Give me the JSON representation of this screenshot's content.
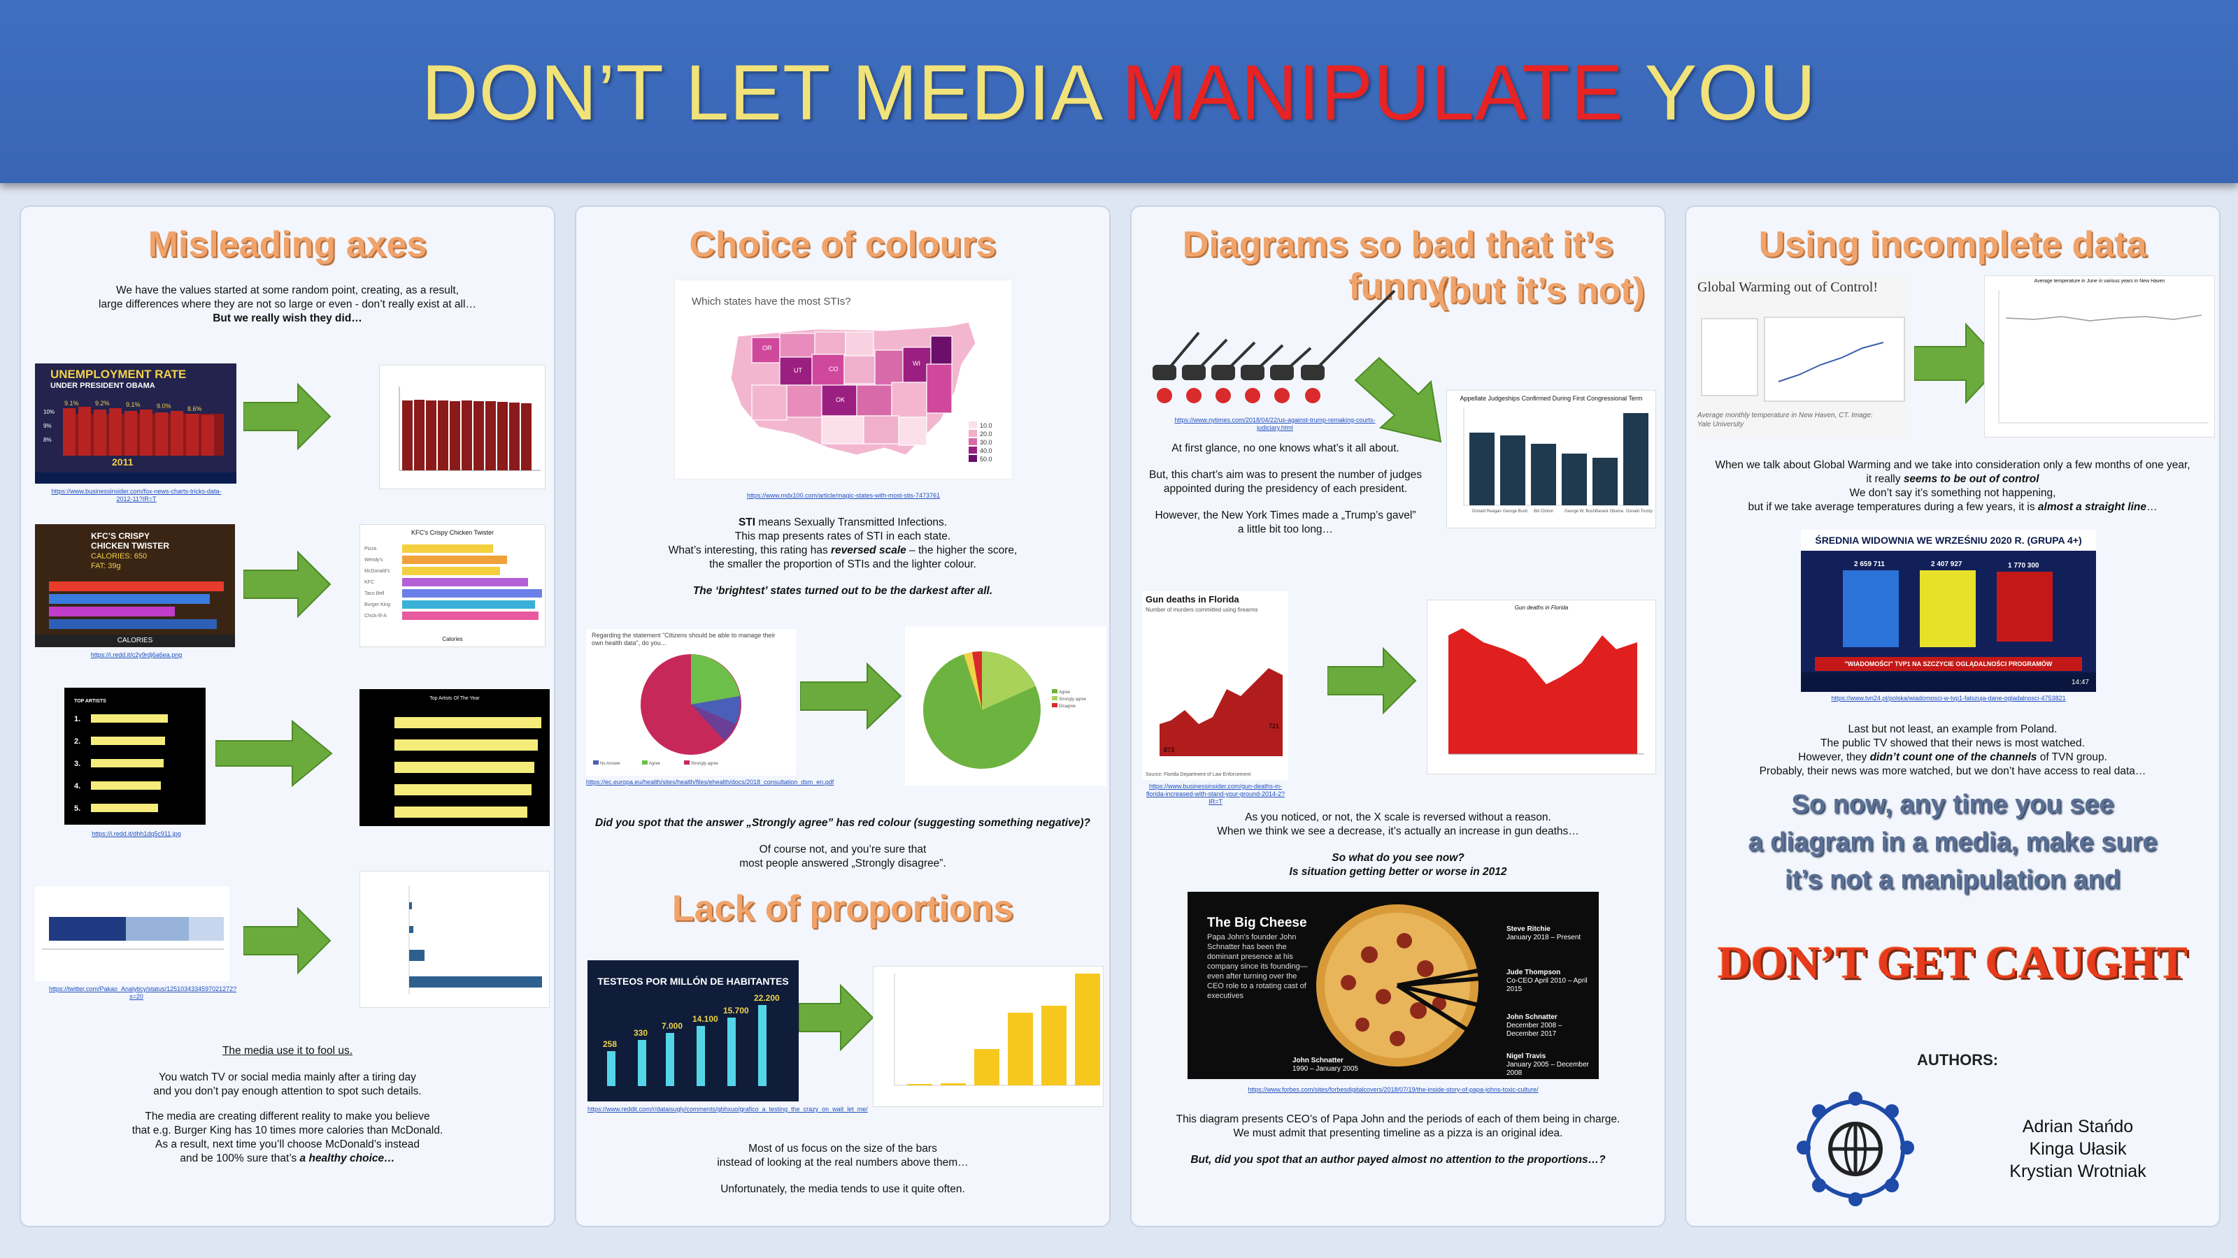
{
  "title": {
    "part1": "DON’T LET MEDIA ",
    "part2": "MANIPULATE",
    "part3": " YOU"
  },
  "col1": {
    "heading": "Misleading axes",
    "intro1": "We have the values started at some random point, creating, as a result,",
    "intro2": "large differences where they are not so large or even - don’t really exist at all…",
    "intro3": "But we really wish they did…",
    "unemp_title": "UNEMPLOYMENT RATE",
    "unemp_sub": "UNDER PRESIDENT OBAMA",
    "unemp_year": "2011",
    "link1": "https://www.businessinsider.com/fox-news-charts-tricks-data-2012-11?IR=T",
    "kfc_title": "KFC’S CRISPY CHICKEN TWISTER",
    "kfc_cal": "CALORIES: 650",
    "kfc_fat": "FAT: 39g",
    "kfc_chart_title": "KFC's Crispy Chicken Twister",
    "kfc_xlabel": "Calories",
    "link2": "https://i.redd.it/c2y9rdj6a6ea.png",
    "artists_title": "TOP ARTISTS",
    "artists_chart_title": "Top Artists Of The Year",
    "link3": "https://i.redd.it/dhh1dq5c911.jpg",
    "link4": "https://twitter.com/Pakao_Analyticy/status/1251034334597021272?s=20",
    "moral_title": "The media use it to fool us.",
    "moral1": "You watch TV or social media mainly after a tiring day",
    "moral2": "and you don’t pay enough attention to spot such details.",
    "moral3": "The media are creating different reality to make you believe",
    "moral4": "that e.g. Burger King has 10 times more calories than McDonald.",
    "moral5": "As a result, next time you’ll choose McDonald’s instead",
    "moral6a": "and be 100% sure that’s ",
    "moral6b": "a healthy choice…"
  },
  "col2": {
    "heading": "Choice of colours",
    "map_title": "Which states have the most STIs?",
    "legend": [
      "10.0",
      "20.0",
      "30.0",
      "40.0",
      "50.0"
    ],
    "link1": "https://www.mdx100.com/article/magic-states-with-most-stis-7473761",
    "p1a": "STI",
    "p1b": " means Sexually Transmitted Infections.",
    "p2": "This map presents rates of STI in each state.",
    "p3a": "What’s interesting, this rating has ",
    "p3b": "reversed scale",
    " p3c": "",
    "p3end": " – the higher the score,",
    "p4": "the smaller the proportion  of STIs and the lighter colour.",
    "p5": "The ‘brightest’ states turned out to be the darkest after all.",
    "pie_q": "Regarding the statement \"Citizens should be able to manage their own health data\", do you...",
    "link2": "https://ec.europa.eu/health/sites/health/files/ehealth/docs/2018_consultation_dsm_en.pdf",
    "q1": "Did you spot that the answer „Strongly agree” has red colour (suggesting something negative)?",
    "q2": "Of course not, and you’re sure that",
    "q3": "most people answered „Strongly disagree”.",
    "heading2": "Lack of proportions",
    "cnn_title": "TESTEOS POR MILLÓN DE HABITANTES",
    "cnn_vals": [
      "258",
      "330",
      "7.000",
      "14.100",
      "15.700",
      "22.200"
    ],
    "link3": "https://www.reddit.com/r/dataisugly/comments/gbhxuo/grafico_a_testing_the_crazy_on_wait_let_me/",
    "e1": "Most of us focus on the size of the bars",
    "e2": "instead of looking at the real numbers above them…",
    "e3": "Unfortunately, the media tends to use it quite often."
  },
  "col3": {
    "heading": "Diagrams so bad that it’s funny",
    "heading_b": "(but it’s not)",
    "judge_title": "Appellate Judgeships Confirmed During First Congressional Term",
    "judge_ylabel": "No. of judges appointed",
    "judge_names": [
      "Donald Reagan",
      "George Bush",
      "Bill Clinton",
      "George W. Bush",
      "Barack Obama",
      "Donald Trump"
    ],
    "link1": "https://www.nytimes.com/2018/04/22/us-against-trump-remaking-courts-judiciary.html",
    "g1": "At first glance, no one knows  what’s it all about.",
    "g2": "But, this chart’s aim was to present the number of judges",
    "g3": "appointed during the presidency of each president.",
    "g4": "However, the New York Times made a „Trump’s gavel”",
    "g5": "a little bit too long…",
    "gun_title": "Gun deaths in Florida",
    "gun_sub": "Number of murders committed using firearms",
    "gun_note": "2005 Florida enacted its 'Stand Your Ground' law",
    "gun_v1": "873",
    "gun_v2": "721",
    "gun_source": "Source: Florida Department of Law Enforcement",
    "gun_chart2_title": "Gun deaths in Florida",
    "link2": "https://www.businessinsider.com/gun-deaths-in-florida-increased-with-stand-your-ground-2014-2?IR=T",
    "f1": "As you noticed, or not, the X scale is reversed without a reason.",
    "f2": "When we think we see a decrease, it’s actually an increase in gun deaths…",
    "f3": "So what do you see now?",
    "f4": "Is situation getting better or worse in 2012",
    "pizza_title": "The Big Cheese",
    "pizza_desc": "Papa John's founder John Schnatter has been the dominant presence at his company since its founding— even after turning over the CEO role to a rotating cast of executives",
    "p_ritchie": "Steve Ritchie",
    "p_ritchie_d": "January 2018 – Present",
    "p_thompson": "Jude Thompson",
    "p_thompson_d": "Co-CEO April 2010 – April 2015",
    "p_schnatter2": "John Schnatter",
    "p_schnatter2_d": "December 2008 – December 2017",
    "p_travis": "Nigel Travis",
    "p_travis_d": "January 2005 – December 2008",
    "p_schnatter1": "John Schnatter",
    "p_schnatter1_d": "1990 – January 2005",
    "link3": "https://www.forbes.com/sites/forbesdigitalcovers/2018/07/19/the-inside-story-of-papa-johns-toxic-culture/",
    "z1": "This diagram presents CEO’s of Papa John and the periods  of each of them being in charge.",
    "z2": "We must admit that presenting timeline as a pizza is an original idea.",
    "z3": "But, did you spot that an author payed almost no attention to the proportions…?"
  },
  "col4": {
    "heading": "Using incomplete data",
    "gw_title": "Global Warming out of Control!",
    "gw_caption": "Average monthly temperature in New Haven, CT. Image: Yale University",
    "gw_chart2_title": "Average temperature in June in various years in New Haven",
    "w1": "When we talk about Global Warming and we take into consideration only a few months of one year,",
    "w2a": "it really ",
    "w2b": "seems to be out of control",
    "w3": "We don’t say it’s something not happening,",
    "w4a": "but if we take average temperatures during a few years, it is ",
    "w4b": "almost a straight line",
    "w4c": "…",
    "tv_title": "ŚREDNIA WIDOWNIA WE WRZEŚNIU 2020 R. (GRUPA 4+)",
    "tv_vals": [
      "2 659 711",
      "2 407 927",
      "1 770 300"
    ],
    "tv_banner": "\"WIADOMOŚCI\" TVP1 NA SZCZYCIE OGLĄDALNOŚCI PROGRAMÓW INFORMACYJNYCH",
    "tv_time": "14:47",
    "link1": "https://www.tvn24.pl/polska/wiadomosci-w-tvp1-falszuja-dane-ogladalnosci-4753821",
    "t1": "Last but not least, an example from Poland.",
    "t2": "The public TV showed that their news is most watched.",
    "t3a": "However, they ",
    "t3b": "didn’t count one of the channels",
    " t3c": "",
    "t3end": " of TVN group.",
    "t4": "Probably, their news was more watched, but we don’t have access to real data…",
    "big1": "So now, any time you see",
    "big2": "a diagram in a media, make sure",
    "big3": "it’s not a manipulation and",
    "caught": "DON’T GET CAUGHT",
    "authors_label": "AUTHORS:",
    "authors": [
      "Adrian Stańdo",
      "Kinga Ułasik",
      "Krystian Wrotniak"
    ]
  }
}
